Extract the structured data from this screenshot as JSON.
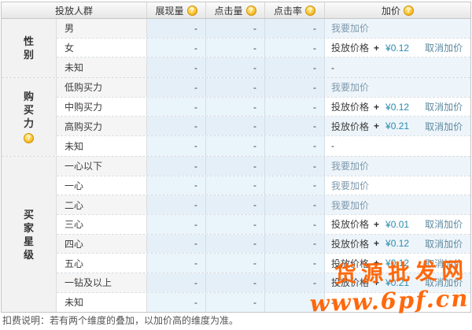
{
  "header": {
    "audience": "投放人群",
    "impressions": "展现量",
    "clicks": "点击量",
    "ctr": "点击率",
    "bid": "加价",
    "help_glyph": "?"
  },
  "bid_labels": {
    "add_link": "我要加价",
    "price_prefix": "投放价格",
    "plus": "+",
    "cancel_link": "取消加价",
    "empty": "-"
  },
  "groups": [
    {
      "key": "gender",
      "name": "性别",
      "chars": [
        "性",
        "别"
      ],
      "has_help_icon": false,
      "rows": [
        {
          "label": "男",
          "impressions": "-",
          "clicks": "-",
          "ctr": "-",
          "bid_type": "add"
        },
        {
          "label": "女",
          "impressions": "-",
          "clicks": "-",
          "ctr": "-",
          "bid_type": "price",
          "bid_amount": "¥0.12"
        },
        {
          "label": "未知",
          "impressions": "-",
          "clicks": "-",
          "ctr": "-",
          "bid_type": "none"
        }
      ]
    },
    {
      "key": "purchase-power",
      "name": "购买力",
      "chars": [
        "购",
        "买",
        "力"
      ],
      "has_help_icon": true,
      "rows": [
        {
          "label": "低购买力",
          "impressions": "-",
          "clicks": "-",
          "ctr": "-",
          "bid_type": "add"
        },
        {
          "label": "中购买力",
          "impressions": "-",
          "clicks": "-",
          "ctr": "-",
          "bid_type": "price",
          "bid_amount": "¥0.12"
        },
        {
          "label": "高购买力",
          "impressions": "-",
          "clicks": "-",
          "ctr": "-",
          "bid_type": "price",
          "bid_amount": "¥0.21"
        },
        {
          "label": "未知",
          "impressions": "-",
          "clicks": "-",
          "ctr": "-",
          "bid_type": "none"
        }
      ]
    },
    {
      "key": "buyer-star",
      "name": "买家星级",
      "chars": [
        "买",
        "家",
        "星",
        "级"
      ],
      "has_help_icon": false,
      "rows": [
        {
          "label": "一心以下",
          "impressions": "-",
          "clicks": "-",
          "ctr": "-",
          "bid_type": "add"
        },
        {
          "label": "一心",
          "impressions": "-",
          "clicks": "-",
          "ctr": "-",
          "bid_type": "add"
        },
        {
          "label": "二心",
          "impressions": "-",
          "clicks": "-",
          "ctr": "-",
          "bid_type": "add"
        },
        {
          "label": "三心",
          "impressions": "-",
          "clicks": "-",
          "ctr": "-",
          "bid_type": "price",
          "bid_amount": "¥0.01"
        },
        {
          "label": "四心",
          "impressions": "-",
          "clicks": "-",
          "ctr": "-",
          "bid_type": "price",
          "bid_amount": "¥0.12"
        },
        {
          "label": "五心",
          "impressions": "-",
          "clicks": "-",
          "ctr": "-",
          "bid_type": "price",
          "bid_amount": "¥0.12"
        },
        {
          "label": "一钻及以上",
          "impressions": "-",
          "clicks": "-",
          "ctr": "-",
          "bid_type": "price",
          "bid_amount": "¥0.21"
        },
        {
          "label": "未知",
          "impressions": "-",
          "clicks": "-",
          "ctr": "-",
          "bid_type": "none"
        }
      ]
    }
  ],
  "footer_note": "扣费说明：若有两个维度的叠加，以加价高的维度为准。",
  "watermark": {
    "line1": "货源批发网",
    "line2": "www.6pf.cn"
  },
  "colors": {
    "data_cell_bg": "#e7f2fa",
    "stripe_label_bg": "#f5f5f5",
    "add_link": "#7e99ad",
    "cancel_link": "#5d89a0",
    "price_text": "#2b8cad",
    "help_icon": "#fbc73a",
    "watermark_orange": "#ff6200"
  }
}
